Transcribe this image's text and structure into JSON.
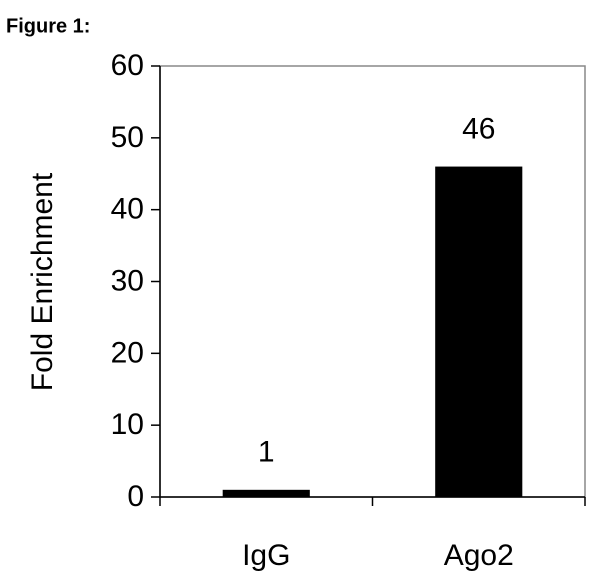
{
  "chart_data": {
    "type": "bar",
    "title": "Figure 1:",
    "y_label": "Fold Enrichment",
    "categories": [
      "IgG",
      "Ago2"
    ],
    "values": [
      1,
      46
    ],
    "color": "#000000",
    "ylim": [
      0,
      60
    ],
    "yticks": [
      0,
      10,
      20,
      30,
      40,
      50,
      60
    ],
    "grid": false,
    "data_labels": true
  }
}
